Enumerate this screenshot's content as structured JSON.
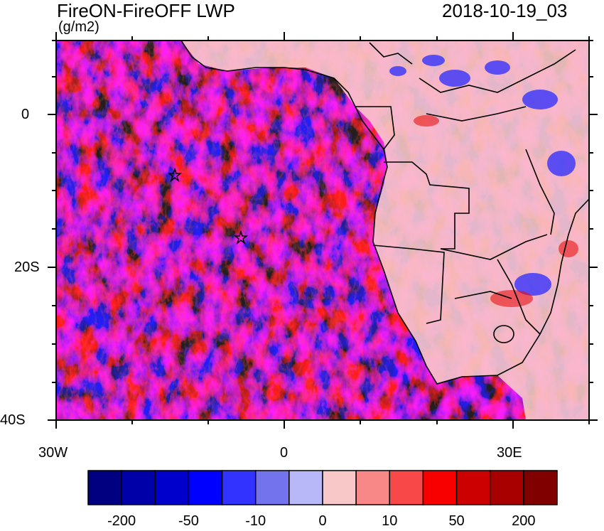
{
  "header": {
    "title": "FireON-FireOFF LWP",
    "units": "(g/m2)",
    "datetime": "2018-10-19_03"
  },
  "map": {
    "lon_range": [
      -30,
      40
    ],
    "lat_range": [
      -40,
      10
    ],
    "y_ticks": [
      "0",
      "20S",
      "40S"
    ],
    "x_ticks": [
      "30W",
      "0",
      "30E"
    ],
    "markers": [
      "star",
      "star"
    ]
  },
  "colorbar": {
    "labels": [
      "-200",
      "-50",
      "-10",
      "0",
      "10",
      "50",
      "200"
    ],
    "colors": [
      "#000080",
      "#0000a8",
      "#0000cc",
      "#0000ff",
      "#3333ff",
      "#7373ee",
      "#b8b8f8",
      "#f8c8c8",
      "#f88888",
      "#f84848",
      "#f80000",
      "#cc0000",
      "#a80000",
      "#800000"
    ]
  }
}
